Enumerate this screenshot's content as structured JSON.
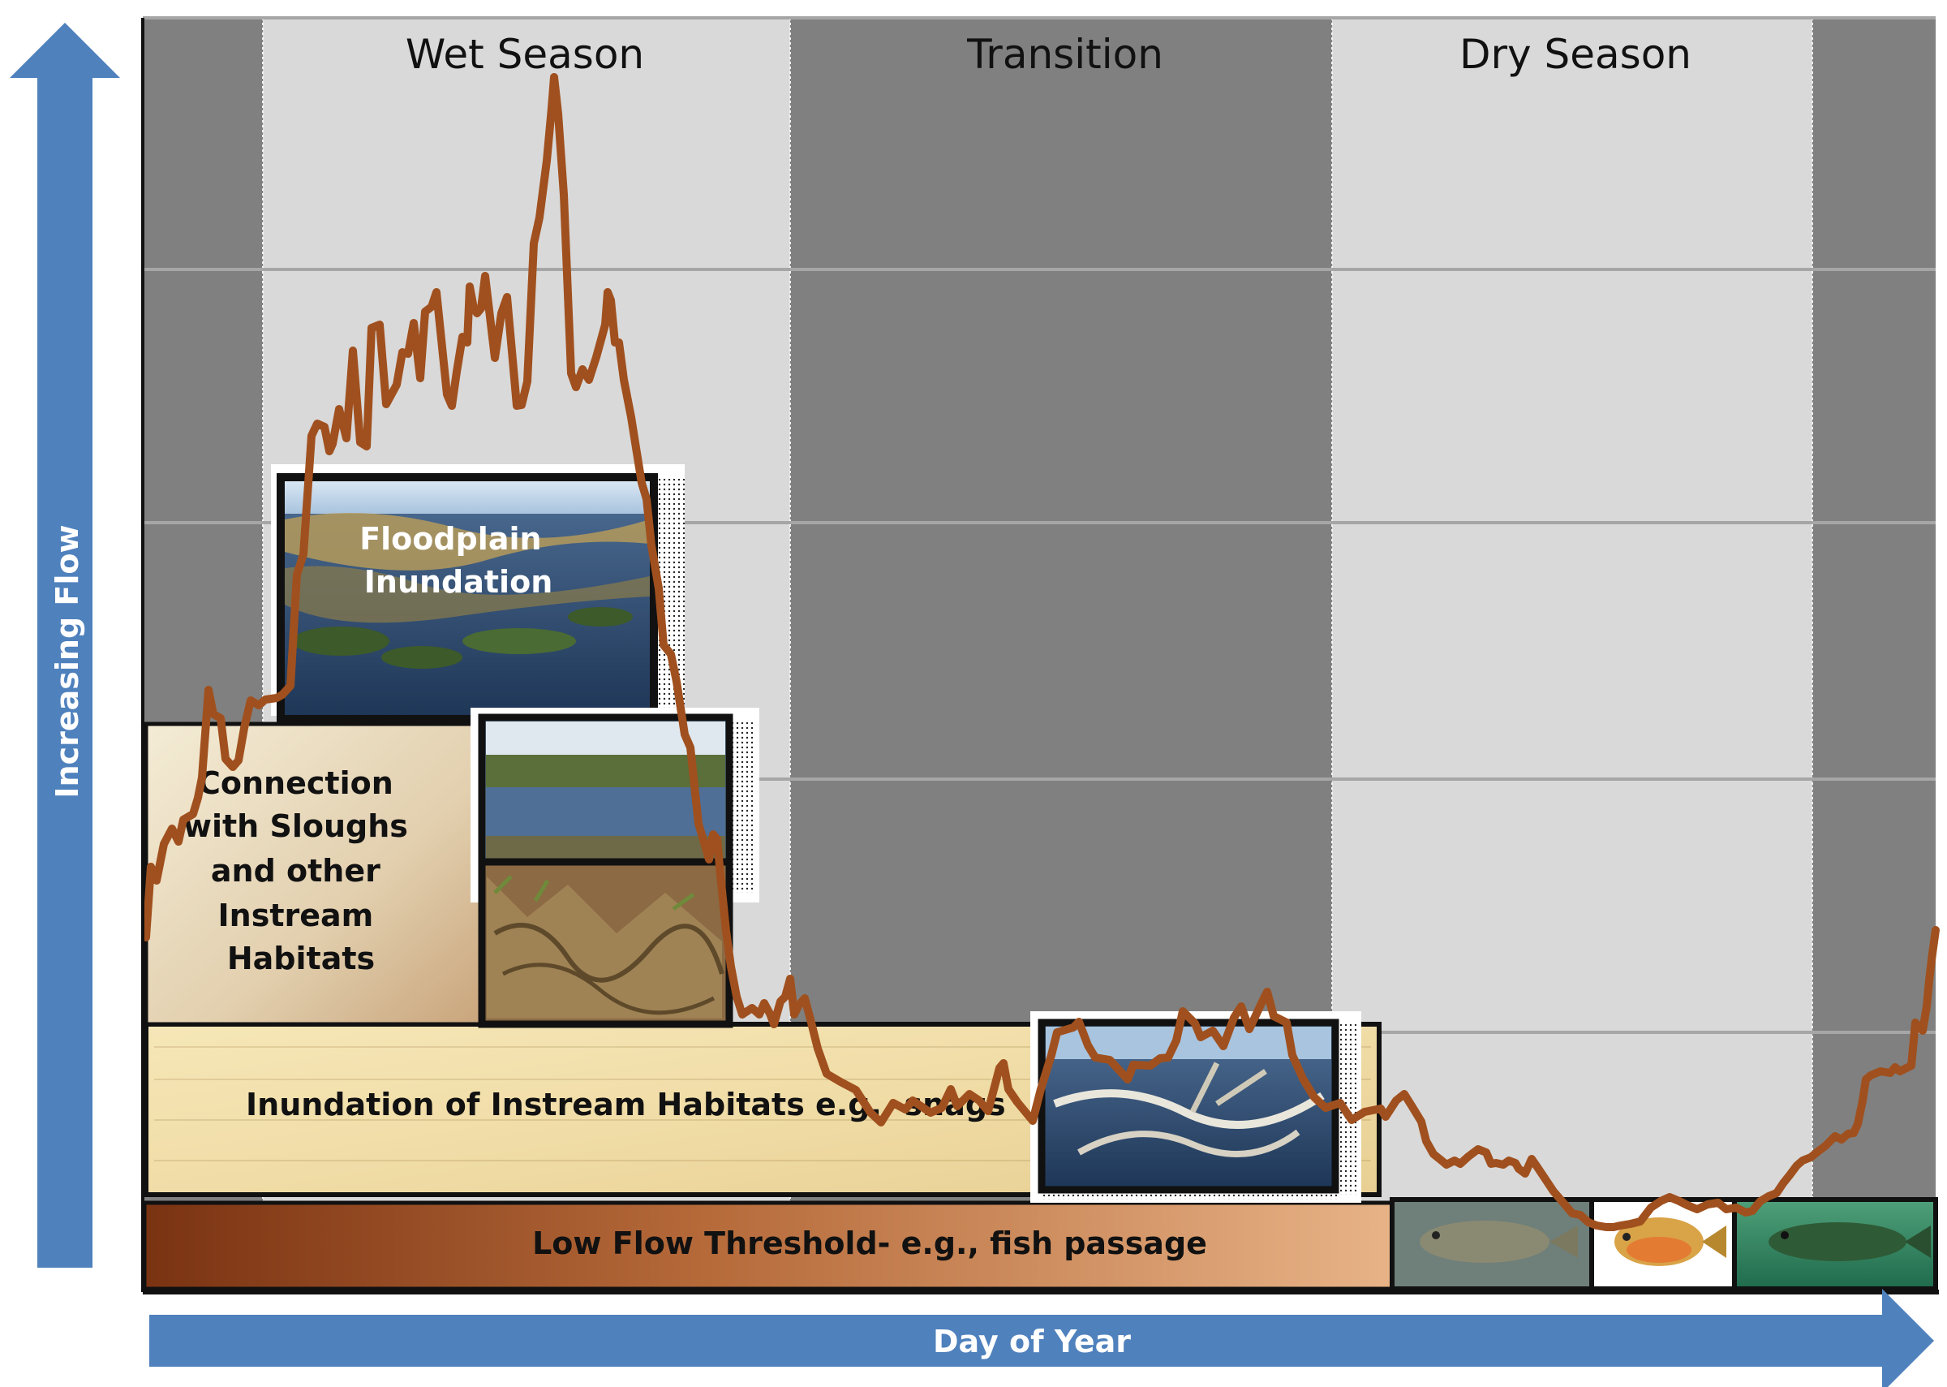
{
  "diagram": {
    "y_axis_label": "Increasing Flow",
    "x_axis_label": "Day of Year",
    "seasons": [
      {
        "label": "Wet Season"
      },
      {
        "label": "Transition"
      },
      {
        "label": "Dry Season"
      }
    ],
    "boxes": {
      "floodplain": {
        "lines": [
          "Floodplain",
          "Inundation"
        ]
      },
      "sloughs": {
        "lines": [
          "Connection",
          "with Sloughs",
          "and other",
          "Instream",
          "Habitats"
        ]
      },
      "instream": {
        "label": "Inundation of Instream Habitats e.g., snags"
      },
      "low_flow": {
        "label": "Low Flow Threshold- e.g., fish passage"
      }
    },
    "photos": [
      {
        "icon": "floodplain-marsh-photo"
      },
      {
        "icon": "slough-pond-photo"
      },
      {
        "icon": "cypress-knees-photo"
      },
      {
        "icon": "submerged-snag-photo"
      },
      {
        "icon": "bass-fish-photo"
      },
      {
        "icon": "sunfish-photo"
      },
      {
        "icon": "green-bass-photo"
      }
    ],
    "colors": {
      "hydrograph": "#A0501E",
      "arrow": "#4F81BD",
      "dark_band": "#808080",
      "light_band": "#D9D9D9"
    }
  }
}
